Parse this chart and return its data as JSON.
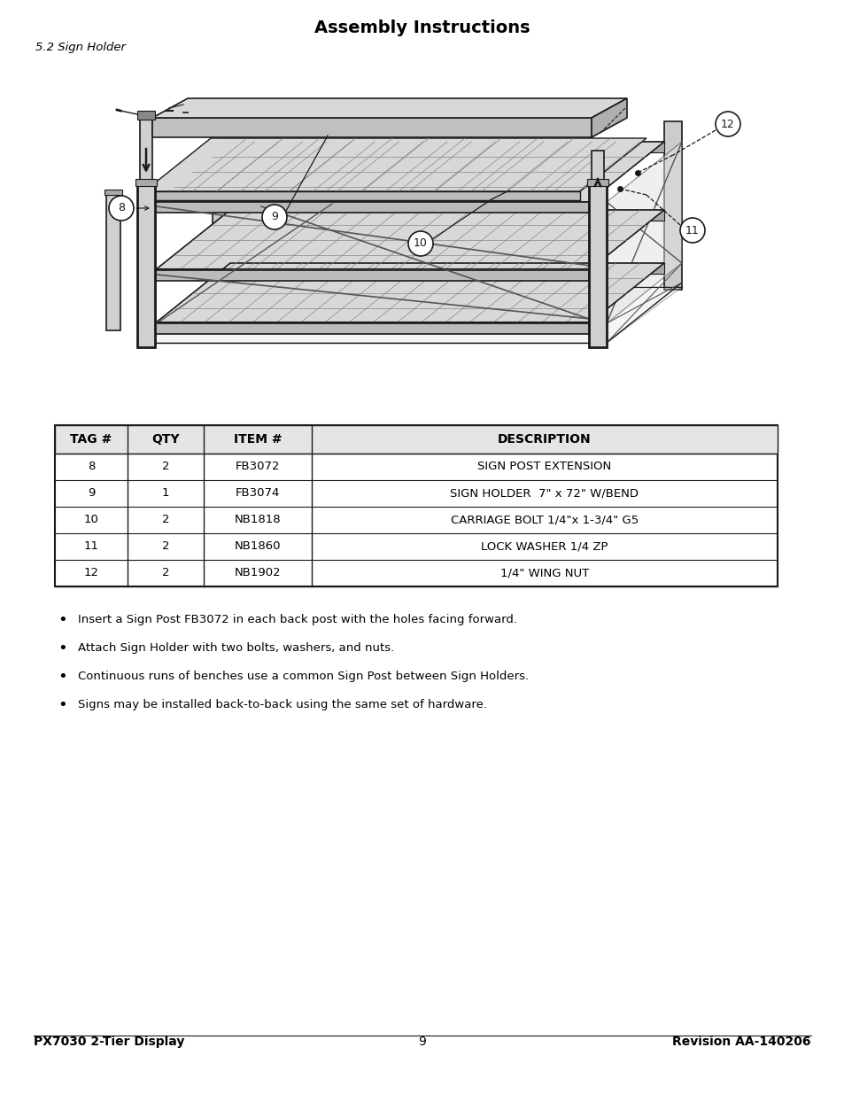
{
  "title": "Assembly Instructions",
  "subtitle": "5.2 Sign Holder",
  "table_headers": [
    "TAG #",
    "QTY",
    "ITEM #",
    "DESCRIPTION"
  ],
  "table_rows": [
    [
      "8",
      "2",
      "FB3072",
      "SIGN POST EXTENSION"
    ],
    [
      "9",
      "1",
      "FB3074",
      "SIGN HOLDER  7\" x 72\" W/BEND"
    ],
    [
      "10",
      "2",
      "NB1818",
      "CARRIAGE BOLT 1/4\"x 1-3/4\" G5"
    ],
    [
      "11",
      "2",
      "NB1860",
      "LOCK WASHER 1/4 ZP"
    ],
    [
      "12",
      "2",
      "NB1902",
      "1/4\" WING NUT"
    ]
  ],
  "bullets": [
    "Insert a Sign Post FB3072 in each back post with the holes facing forward.",
    "Attach Sign Holder with two bolts, washers, and nuts.",
    "Continuous runs of benches use a common Sign Post between Sign Holders.",
    "Signs may be installed back-to-back using the same set of hardware."
  ],
  "footer_left": "PX7030 2-Tier Display",
  "footer_center": "9",
  "footer_right": "Revision AA-140206",
  "background_color": "#ffffff",
  "text_color": "#000000"
}
